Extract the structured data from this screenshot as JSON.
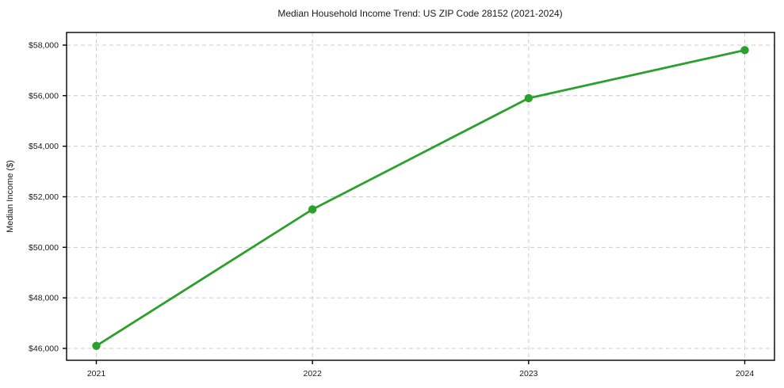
{
  "page": {
    "background": "#ffffff"
  },
  "chart_data": {
    "type": "line",
    "title": "Median Household Income Trend: US ZIP Code 28152 (2021-2024)",
    "xlabel": "",
    "ylabel": "Median Income ($)",
    "categories": [
      "2021",
      "2022",
      "2023",
      "2024"
    ],
    "values": [
      46100,
      51500,
      55900,
      57800
    ],
    "ylim": [
      45530,
      58500
    ],
    "yticks": {
      "values": [
        46000,
        48000,
        50000,
        52000,
        54000,
        56000,
        58000
      ],
      "labels": [
        "$46,000",
        "$48,000",
        "$50,000",
        "$52,000",
        "$54,000",
        "$56,000",
        "$58,000"
      ]
    },
    "grid": true,
    "grid_style": "dashed",
    "legend": "none",
    "marker": "circle",
    "colors": {
      "line": "#2ca02c",
      "marker": "#2ca02c",
      "grid": "#cccccc",
      "spine": "#000000",
      "text": "#1a1a1a"
    }
  }
}
